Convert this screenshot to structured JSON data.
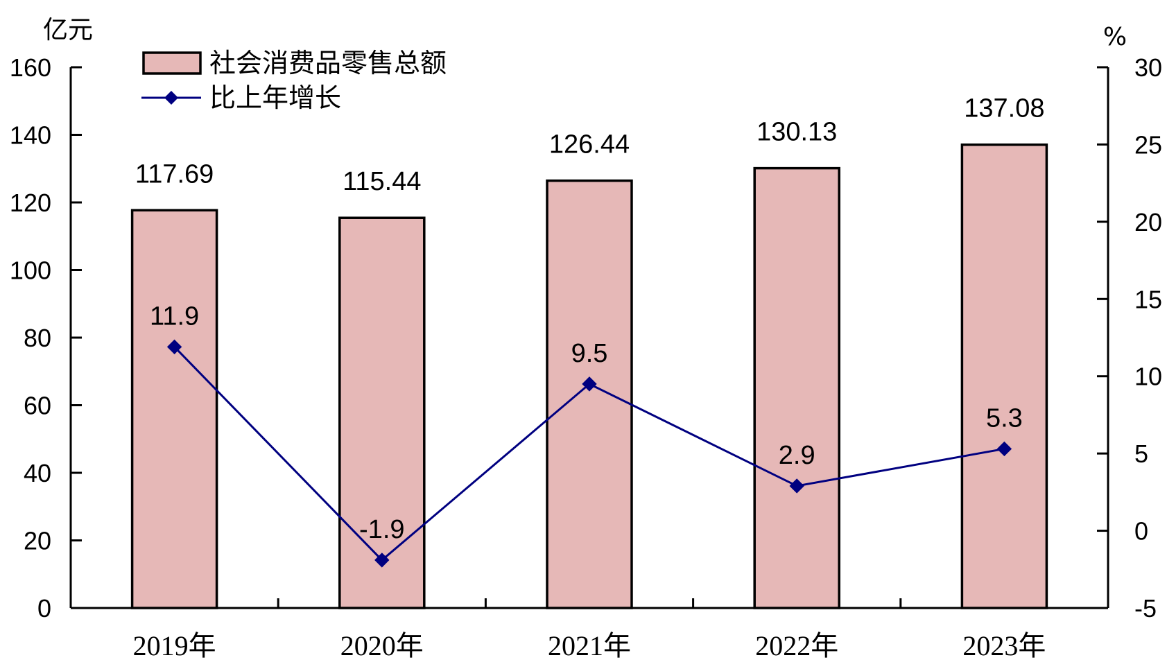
{
  "chart_data": {
    "type": "bar",
    "categories": [
      "2019年",
      "2020年",
      "2021年",
      "2022年",
      "2023年"
    ],
    "series": [
      {
        "name": "社会消费品零售总额",
        "type": "bar",
        "axis": "left",
        "values": [
          117.69,
          115.44,
          126.44,
          130.13,
          137.08
        ],
        "labels": [
          "117.69",
          "115.44",
          "126.44",
          "130.13",
          "137.08"
        ]
      },
      {
        "name": "比上年增长",
        "type": "line",
        "axis": "right",
        "values": [
          11.9,
          -1.9,
          9.5,
          2.9,
          5.3
        ],
        "labels": [
          "11.9",
          "-1.9",
          "9.5",
          "2.9",
          "5.3"
        ]
      }
    ],
    "y_left": {
      "unit": "亿元",
      "range": [
        0,
        160
      ],
      "ticks": [
        0,
        20,
        40,
        60,
        80,
        100,
        120,
        140,
        160
      ]
    },
    "y_right": {
      "unit": "%",
      "range": [
        -5,
        30
      ],
      "ticks": [
        -5,
        0,
        5,
        10,
        15,
        20,
        25,
        30
      ]
    },
    "legend_position": "top-left",
    "grid": false
  },
  "colors": {
    "bar_fill": "#e6b8b7",
    "bar_stroke": "#000000",
    "line": "#000080",
    "marker": "#000080",
    "axis": "#000000"
  }
}
